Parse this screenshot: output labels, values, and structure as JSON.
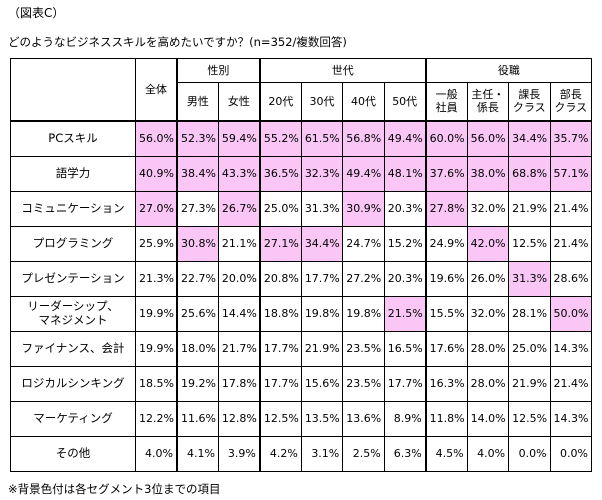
{
  "caption": "（図表C）",
  "title": "どのようなビジネススキルを高めたいですか？(n=352/複数回答)",
  "highlight_color": "#f9c6f5",
  "table": {
    "total_header": "全体",
    "groups": [
      {
        "label": "性別",
        "columns": [
          "男性",
          "女性"
        ]
      },
      {
        "label": "世代",
        "columns": [
          "20代",
          "30代",
          "40代",
          "50代"
        ]
      },
      {
        "label": "役職",
        "columns": [
          "一般\n社員",
          "主任・\n係長",
          "課長\nクラス",
          "部長\nクラス"
        ]
      }
    ],
    "rows": [
      {
        "label": "PCスキル",
        "cells": [
          "56.0%",
          "52.3%",
          "59.4%",
          "55.2%",
          "61.5%",
          "56.8%",
          "49.4%",
          "60.0%",
          "56.0%",
          "34.4%",
          "35.7%"
        ],
        "highlighted": [
          true,
          true,
          true,
          true,
          true,
          true,
          true,
          true,
          true,
          true,
          true
        ]
      },
      {
        "label": "語学力",
        "cells": [
          "40.9%",
          "38.4%",
          "43.3%",
          "36.5%",
          "32.3%",
          "49.4%",
          "48.1%",
          "37.6%",
          "38.0%",
          "68.8%",
          "57.1%"
        ],
        "highlighted": [
          true,
          true,
          true,
          true,
          true,
          true,
          true,
          true,
          true,
          true,
          true
        ]
      },
      {
        "label": "コミュニケーション",
        "cells": [
          "27.0%",
          "27.3%",
          "26.7%",
          "25.0%",
          "31.3%",
          "30.9%",
          "20.3%",
          "27.8%",
          "32.0%",
          "21.9%",
          "21.4%"
        ],
        "highlighted": [
          true,
          false,
          true,
          false,
          false,
          true,
          false,
          true,
          false,
          false,
          false
        ]
      },
      {
        "label": "プログラミング",
        "cells": [
          "25.9%",
          "30.8%",
          "21.1%",
          "27.1%",
          "34.4%",
          "24.7%",
          "15.2%",
          "24.9%",
          "42.0%",
          "12.5%",
          "21.4%"
        ],
        "highlighted": [
          false,
          true,
          false,
          true,
          true,
          false,
          false,
          false,
          true,
          false,
          false
        ]
      },
      {
        "label": "プレゼンテーション",
        "cells": [
          "21.3%",
          "22.7%",
          "20.0%",
          "20.8%",
          "17.7%",
          "27.2%",
          "20.3%",
          "19.6%",
          "26.0%",
          "31.3%",
          "28.6%"
        ],
        "highlighted": [
          false,
          false,
          false,
          false,
          false,
          false,
          false,
          false,
          false,
          true,
          false
        ]
      },
      {
        "label": "リーダーシップ、\nマネジメント",
        "cells": [
          "19.9%",
          "25.6%",
          "14.4%",
          "18.8%",
          "19.8%",
          "19.8%",
          "21.5%",
          "15.5%",
          "32.0%",
          "28.1%",
          "50.0%"
        ],
        "highlighted": [
          false,
          false,
          false,
          false,
          false,
          false,
          true,
          false,
          false,
          false,
          true
        ]
      },
      {
        "label": "ファイナンス、会計",
        "cells": [
          "19.9%",
          "18.0%",
          "21.7%",
          "17.7%",
          "21.9%",
          "23.5%",
          "16.5%",
          "17.6%",
          "28.0%",
          "25.0%",
          "14.3%"
        ],
        "highlighted": [
          false,
          false,
          false,
          false,
          false,
          false,
          false,
          false,
          false,
          false,
          false
        ]
      },
      {
        "label": "ロジカルシンキング",
        "cells": [
          "18.5%",
          "19.2%",
          "17.8%",
          "17.7%",
          "15.6%",
          "23.5%",
          "17.7%",
          "16.3%",
          "28.0%",
          "21.9%",
          "21.4%"
        ],
        "highlighted": [
          false,
          false,
          false,
          false,
          false,
          false,
          false,
          false,
          false,
          false,
          false
        ]
      },
      {
        "label": "マーケティング",
        "cells": [
          "12.2%",
          "11.6%",
          "12.8%",
          "12.5%",
          "13.5%",
          "13.6%",
          "8.9%",
          "11.8%",
          "14.0%",
          "12.5%",
          "14.3%"
        ],
        "highlighted": [
          false,
          false,
          false,
          false,
          false,
          false,
          false,
          false,
          false,
          false,
          false
        ]
      },
      {
        "label": "その他",
        "cells": [
          "4.0%",
          "4.1%",
          "3.9%",
          "4.2%",
          "3.1%",
          "2.5%",
          "6.3%",
          "4.5%",
          "4.0%",
          "0.0%",
          "0.0%"
        ],
        "highlighted": [
          false,
          false,
          false,
          false,
          false,
          false,
          false,
          false,
          false,
          false,
          false
        ]
      }
    ]
  },
  "footnote": "※背景色付は各セグメント3位までの項目"
}
